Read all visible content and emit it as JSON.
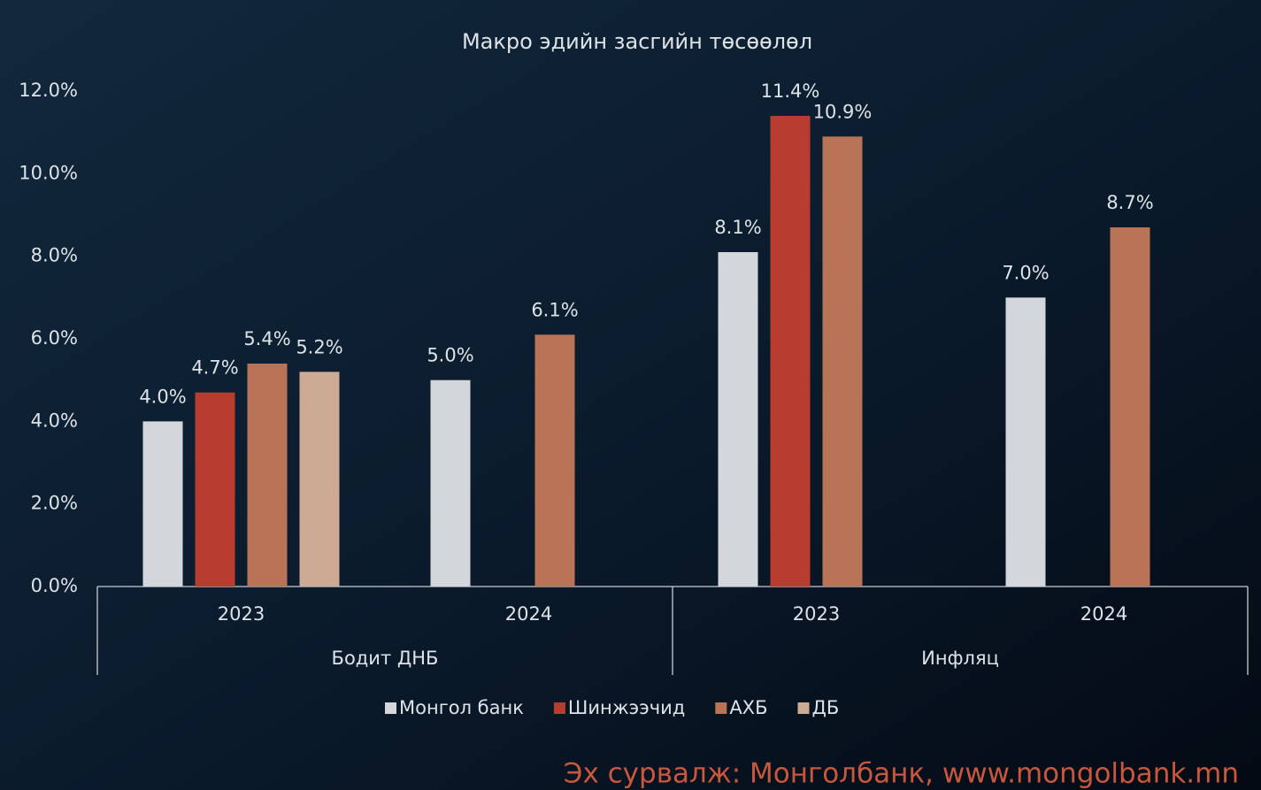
{
  "chart_data": {
    "type": "bar",
    "title": "Макро эдийн засгийн төсөөлөл",
    "groups": [
      "Бодит ДНБ",
      "Инфляц"
    ],
    "categories": [
      "2023",
      "2024",
      "2023",
      "2024"
    ],
    "series": [
      {
        "name": "Монгол банк",
        "color": "#d3d6da",
        "values": [
          4.0,
          5.0,
          8.1,
          7.0
        ],
        "value_labels": [
          "4.0%",
          "5.0%",
          "8.1%",
          "7.0%"
        ]
      },
      {
        "name": "Шинжээчид",
        "color": "#b83d2e",
        "values": [
          4.7,
          null,
          11.4,
          null
        ],
        "value_labels": [
          "4.7%",
          null,
          "11.4%",
          null
        ]
      },
      {
        "name": "АХБ",
        "color": "#b97457",
        "values": [
          5.4,
          6.1,
          10.9,
          8.7
        ],
        "value_labels": [
          "5.4%",
          "6.1%",
          "10.9%",
          "8.7%"
        ]
      },
      {
        "name": "ДБ",
        "color": "#cdaa93",
        "values": [
          5.2,
          null,
          null,
          null
        ],
        "value_labels": [
          "5.2%",
          null,
          null,
          null
        ]
      }
    ],
    "ylim": [
      0,
      12
    ],
    "yticks": [
      {
        "value": 0,
        "label": "0.0%"
      },
      {
        "value": 2,
        "label": "2.0%"
      },
      {
        "value": 4,
        "label": "4.0%"
      },
      {
        "value": 6,
        "label": "6.0%"
      },
      {
        "value": 8,
        "label": "8.0%"
      },
      {
        "value": 10,
        "label": "10.0%"
      },
      {
        "value": 12,
        "label": "12.0%"
      }
    ],
    "grid": false,
    "legend": "bottom",
    "source": "Эх сурвалж: Монголбанк, www.mongolbank.mn"
  }
}
